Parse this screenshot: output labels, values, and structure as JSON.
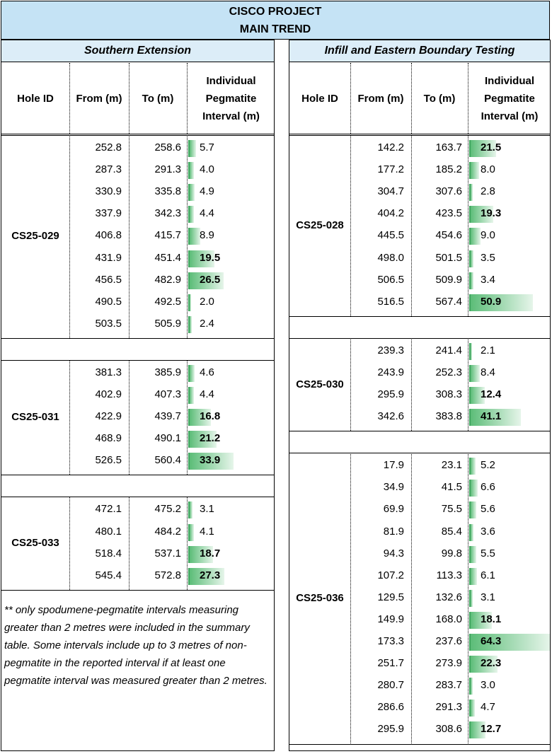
{
  "header": {
    "line1": "CISCO PROJECT",
    "line2": "MAIN TREND"
  },
  "columns": {
    "hole": "Hole ID",
    "from": "From (m)",
    "to": "To (m)",
    "interval": "Individual Pegmatite Interval (m)"
  },
  "left": {
    "title": "Southern Extension",
    "holes": [
      {
        "id": "CS25-029",
        "rows": [
          {
            "from": "252.8",
            "to": "258.6",
            "interval": "5.7"
          },
          {
            "from": "287.3",
            "to": "291.3",
            "interval": "4.0"
          },
          {
            "from": "330.9",
            "to": "335.8",
            "interval": "4.9"
          },
          {
            "from": "337.9",
            "to": "342.3",
            "interval": "4.4"
          },
          {
            "from": "406.8",
            "to": "415.7",
            "interval": "8.9"
          },
          {
            "from": "431.9",
            "to": "451.4",
            "interval": "19.5"
          },
          {
            "from": "456.5",
            "to": "482.9",
            "interval": "26.5"
          },
          {
            "from": "490.5",
            "to": "492.5",
            "interval": "2.0"
          },
          {
            "from": "503.5",
            "to": "505.9",
            "interval": "2.4"
          }
        ]
      },
      {
        "id": "CS25-031",
        "rows": [
          {
            "from": "381.3",
            "to": "385.9",
            "interval": "4.6"
          },
          {
            "from": "402.9",
            "to": "407.3",
            "interval": "4.4"
          },
          {
            "from": "422.9",
            "to": "439.7",
            "interval": "16.8"
          },
          {
            "from": "468.9",
            "to": "490.1",
            "interval": "21.2"
          },
          {
            "from": "526.5",
            "to": "560.4",
            "interval": "33.9"
          }
        ]
      },
      {
        "id": "CS25-033",
        "rows": [
          {
            "from": "472.1",
            "to": "475.2",
            "interval": "3.1"
          },
          {
            "from": "480.1",
            "to": "484.2",
            "interval": "4.1"
          },
          {
            "from": "518.4",
            "to": "537.1",
            "interval": "18.7"
          },
          {
            "from": "545.4",
            "to": "572.8",
            "interval": "27.3"
          }
        ]
      }
    ],
    "note": "** only spodumene-pegmatite intervals measuring greater than 2 metres were included in the summary table.  Some intervals include up to 3 metres of non-pegmatite in the reported interval if at least one pegmatite interval was measured greater than 2 metres."
  },
  "right": {
    "title": "Infill and Eastern Boundary Testing",
    "holes": [
      {
        "id": "CS25-028",
        "rows": [
          {
            "from": "142.2",
            "to": "163.7",
            "interval": "21.5"
          },
          {
            "from": "177.2",
            "to": "185.2",
            "interval": "8.0"
          },
          {
            "from": "304.7",
            "to": "307.6",
            "interval": "2.8"
          },
          {
            "from": "404.2",
            "to": "423.5",
            "interval": "19.3"
          },
          {
            "from": "445.5",
            "to": "454.6",
            "interval": "9.0"
          },
          {
            "from": "498.0",
            "to": "501.5",
            "interval": "3.5"
          },
          {
            "from": "506.5",
            "to": "509.9",
            "interval": "3.4"
          },
          {
            "from": "516.5",
            "to": "567.4",
            "interval": "50.9"
          }
        ]
      },
      {
        "id": "CS25-030",
        "rows": [
          {
            "from": "239.3",
            "to": "241.4",
            "interval": "2.1"
          },
          {
            "from": "243.9",
            "to": "252.3",
            "interval": "8.4"
          },
          {
            "from": "295.9",
            "to": "308.3",
            "interval": "12.4"
          },
          {
            "from": "342.6",
            "to": "383.8",
            "interval": "41.1"
          }
        ]
      },
      {
        "id": "CS25-036",
        "rows": [
          {
            "from": "17.9",
            "to": "23.1",
            "interval": "5.2"
          },
          {
            "from": "34.9",
            "to": "41.5",
            "interval": "6.6"
          },
          {
            "from": "69.9",
            "to": "75.5",
            "interval": "5.6"
          },
          {
            "from": "81.9",
            "to": "85.4",
            "interval": "3.6"
          },
          {
            "from": "94.3",
            "to": "99.8",
            "interval": "5.5"
          },
          {
            "from": "107.2",
            "to": "113.3",
            "interval": "6.1"
          },
          {
            "from": "129.5",
            "to": "132.6",
            "interval": "3.1"
          },
          {
            "from": "149.9",
            "to": "168.0",
            "interval": "18.1"
          },
          {
            "from": "173.3",
            "to": "237.6",
            "interval": "64.3"
          },
          {
            "from": "251.7",
            "to": "273.9",
            "interval": "22.3"
          },
          {
            "from": "280.7",
            "to": "283.7",
            "interval": "3.0"
          },
          {
            "from": "286.6",
            "to": "291.3",
            "interval": "4.7"
          },
          {
            "from": "295.9",
            "to": "308.6",
            "interval": "12.7"
          }
        ]
      }
    ]
  },
  "colors": {
    "header_bg": "#c5e3f5",
    "subheader_bg": "#dcedf8",
    "bar": "#5cbd78"
  },
  "bar_scale_max": 64.3,
  "bold_threshold": 10
}
